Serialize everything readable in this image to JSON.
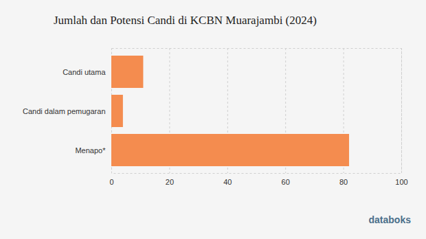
{
  "chart_data": {
    "type": "bar",
    "orientation": "horizontal",
    "title": "Jumlah dan Potensi Candi di KCBN Muarajambi (2024)",
    "categories": [
      "Candi utama",
      "Candi dalam pemugaran",
      "Menapo*"
    ],
    "values": [
      11,
      4,
      82
    ],
    "color": "#f48c4f",
    "xlim": [
      0,
      100
    ],
    "xticks": [
      0,
      20,
      40,
      60,
      80,
      100
    ],
    "grid": true,
    "source": "databoks"
  }
}
